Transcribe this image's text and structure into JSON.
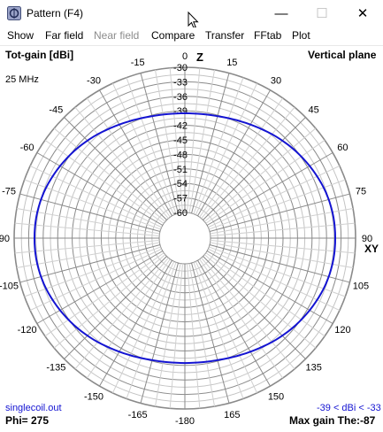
{
  "window": {
    "title": "Pattern   (F4)",
    "minimize_glyph": "—",
    "maximize_glyph": "☐",
    "close_glyph": "✕"
  },
  "menu": [
    "Show",
    "Far field",
    "Near field",
    "Compare",
    "Transfer",
    "FFtab",
    "Plot"
  ],
  "menu_disabled": [
    false,
    false,
    true,
    false,
    false,
    false,
    false
  ],
  "plot": {
    "gain_label": "Tot-gain [dBi]",
    "plane_label": "Vertical plane",
    "frequency": "25 MHz",
    "filename": "singlecoil.out",
    "range": "-39 < dBi < -33",
    "phi": "Phi= 275",
    "max_gain": "Max gain The:-87",
    "z_label": "Z",
    "xy_label": "XY",
    "angle_labels": [
      "0",
      "15",
      "30",
      "45",
      "60",
      "75",
      "90",
      "105",
      "120",
      "135",
      "150",
      "165",
      "-180",
      "-165",
      "-150",
      "-135",
      "-120",
      "-105",
      "-90",
      "-75",
      "-60",
      "-45",
      "-30",
      "-15"
    ],
    "db_labels": [
      "-30",
      "-33",
      "-36",
      "-39",
      "-42",
      "-45",
      "-48",
      "-51",
      "-54",
      "-57",
      "-60"
    ],
    "trace_color": "#1414d2"
  },
  "chart_data": {
    "type": "polar",
    "title": "Tot-gain [dBi]",
    "r_unit": "dBi",
    "r_range": [
      -60,
      -30
    ],
    "theta_unit": "deg",
    "theta": [
      0,
      15,
      30,
      45,
      60,
      75,
      90,
      105,
      120,
      135,
      150,
      165,
      180,
      -165,
      -150,
      -135,
      -120,
      -105,
      -90,
      -75,
      -60,
      -45,
      -30,
      -15
    ],
    "r": [
      -39.5,
      -39.2,
      -38.2,
      -36.8,
      -35.5,
      -34.5,
      -34.2,
      -34.5,
      -35.5,
      -36.8,
      -38.2,
      -39.2,
      -39.5,
      -39.2,
      -38.2,
      -36.8,
      -35.5,
      -34.5,
      -34.2,
      -34.5,
      -35.5,
      -36.8,
      -38.2,
      -39.2
    ]
  }
}
